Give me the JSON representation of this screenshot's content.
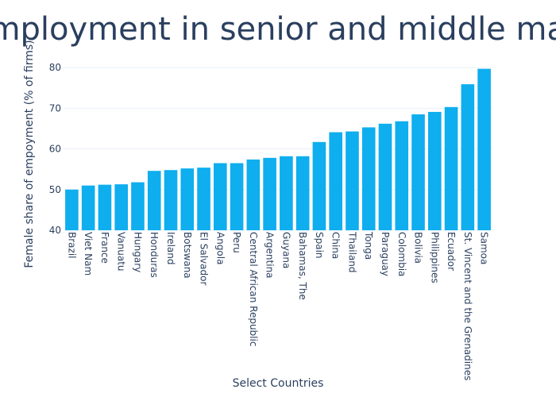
{
  "chart_data": {
    "type": "bar",
    "title": "Share of employment in senior and middle management",
    "xlabel": "Select Countries",
    "ylabel": "Female share of empoyment (% of firms)",
    "ylim": [
      40,
      81
    ],
    "yticks": [
      40,
      50,
      60,
      70,
      80
    ],
    "grid": "y",
    "bar_color": "#0eaeef",
    "text_color": "#2a3f5f",
    "categories": [
      "Brazil",
      "Viet Nam",
      "France",
      "Vanuatu",
      "Hungary",
      "Honduras",
      "Ireland",
      "Botswana",
      "El Salvador",
      "Angola",
      "Peru",
      "Central African Republic",
      "Argentina",
      "Guyana",
      "Bahamas, The",
      "Spain",
      "China",
      "Thailand",
      "Tonga",
      "Paraguay",
      "Colombia",
      "Bolivia",
      "Philippines",
      "Ecuador",
      "St. Vincent and the Grenadines",
      "Samoa"
    ],
    "values": [
      50.0,
      51.0,
      51.2,
      51.3,
      51.8,
      54.6,
      54.8,
      55.2,
      55.4,
      56.5,
      56.5,
      57.4,
      57.8,
      58.2,
      58.2,
      61.7,
      64.1,
      64.3,
      65.3,
      66.2,
      66.8,
      68.5,
      69.1,
      70.3,
      75.9,
      79.7
    ]
  }
}
